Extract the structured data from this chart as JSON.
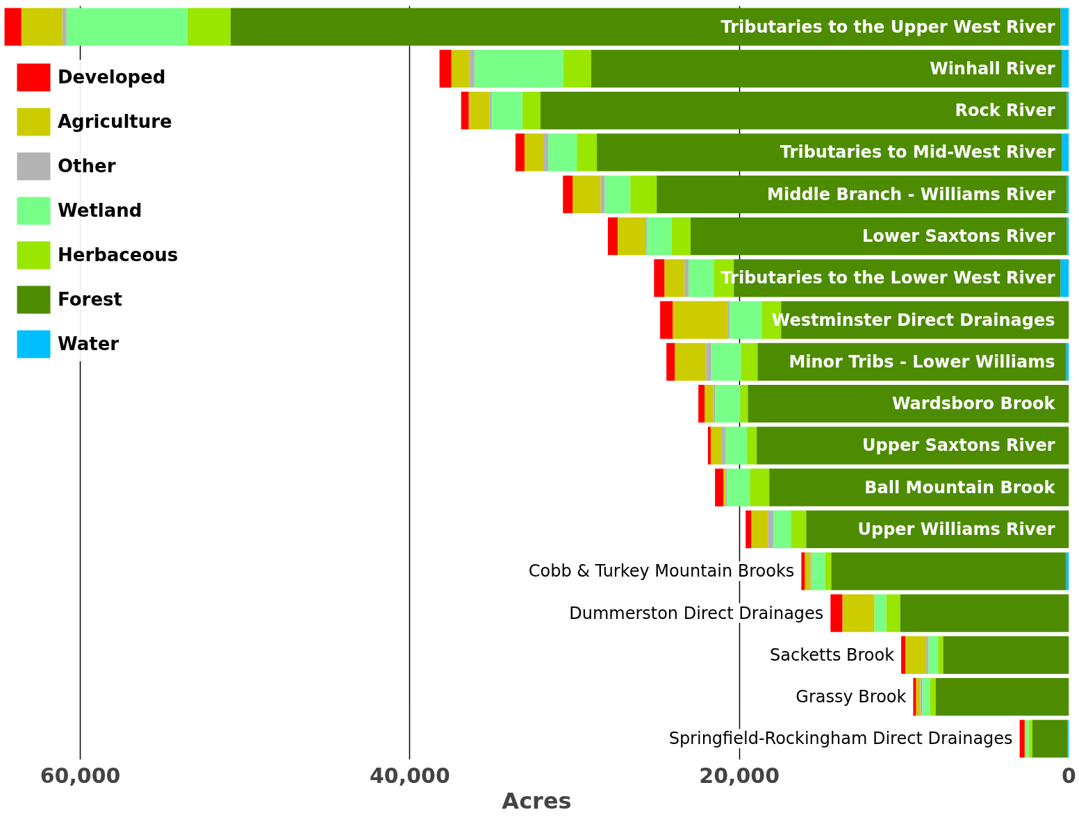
{
  "chart_data": {
    "type": "bar",
    "orientation": "horizontal",
    "stacked": true,
    "categories": [
      "Tributaries to the Upper West River",
      "Winhall River",
      "Rock River",
      "Tributaries to Mid-West River",
      "Middle Branch - Williams River",
      "Lower Saxtons River",
      "Tributaries to the Lower West River",
      "Westminster Direct Drainages",
      "Minor Tribs - Lower Williams",
      "Wardsboro Brook",
      "Upper Saxtons River",
      "Ball Mountain Brook",
      "Upper Williams River",
      "Cobb & Turkey Mountain Brooks",
      "Dummerston Direct Drainages",
      "Sacketts Brook",
      "Grassy Brook",
      "Springfield-Rockingham Direct Drainages"
    ],
    "series": [
      {
        "name": "Water",
        "color": "#00bfff",
        "values": [
          500,
          420,
          130,
          420,
          130,
          130,
          510,
          null,
          170,
          null,
          null,
          null,
          null,
          170,
          null,
          null,
          null,
          80
        ]
      },
      {
        "name": "Forest",
        "color": "#4d8c00",
        "values": [
          50380,
          28570,
          31940,
          28230,
          24890,
          22830,
          19830,
          17470,
          18730,
          19490,
          18950,
          18190,
          15950,
          14260,
          10250,
          7640,
          8100,
          2150
        ]
      },
      {
        "name": "Herbaceous",
        "color": "#99e600",
        "values": [
          2620,
          1690,
          1100,
          1220,
          1600,
          1140,
          1220,
          1180,
          1010,
          460,
          590,
          1180,
          930,
          380,
          840,
          300,
          340,
          210
        ]
      },
      {
        "name": "Wetland",
        "color": "#77ff88",
        "values": [
          7340,
          5400,
          1860,
          1730,
          1560,
          1520,
          1520,
          1940,
          1810,
          1520,
          1310,
          1390,
          1050,
          800,
          720,
          590,
          460,
          170
        ]
      },
      {
        "name": "Other",
        "color": "#b3b3b3",
        "values": [
          250,
          300,
          130,
          300,
          250,
          80,
          250,
          130,
          300,
          130,
          210,
          80,
          340,
          80,
          null,
          130,
          130,
          null
        ]
      },
      {
        "name": "Agriculture",
        "color": "#cccc00",
        "values": [
          2490,
          1100,
          1270,
          1140,
          1690,
          1690,
          1220,
          3330,
          1900,
          510,
          680,
          130,
          1010,
          340,
          1940,
          1270,
          250,
          80
        ]
      },
      {
        "name": "Developed",
        "color": "#ff0000",
        "values": [
          1050,
          720,
          460,
          550,
          590,
          590,
          630,
          760,
          510,
          380,
          170,
          510,
          340,
          210,
          720,
          250,
          170,
          300
        ]
      }
    ],
    "xlim": [
      64600,
      0
    ],
    "xticks": [
      {
        "value": 60000,
        "label": "60,000"
      },
      {
        "value": 40000,
        "label": "40,000"
      },
      {
        "value": 20000,
        "label": "20,000"
      },
      0
    ],
    "xlabel": "Acres",
    "grid": "x",
    "legend": "top left",
    "tick_labels": "x"
  }
}
